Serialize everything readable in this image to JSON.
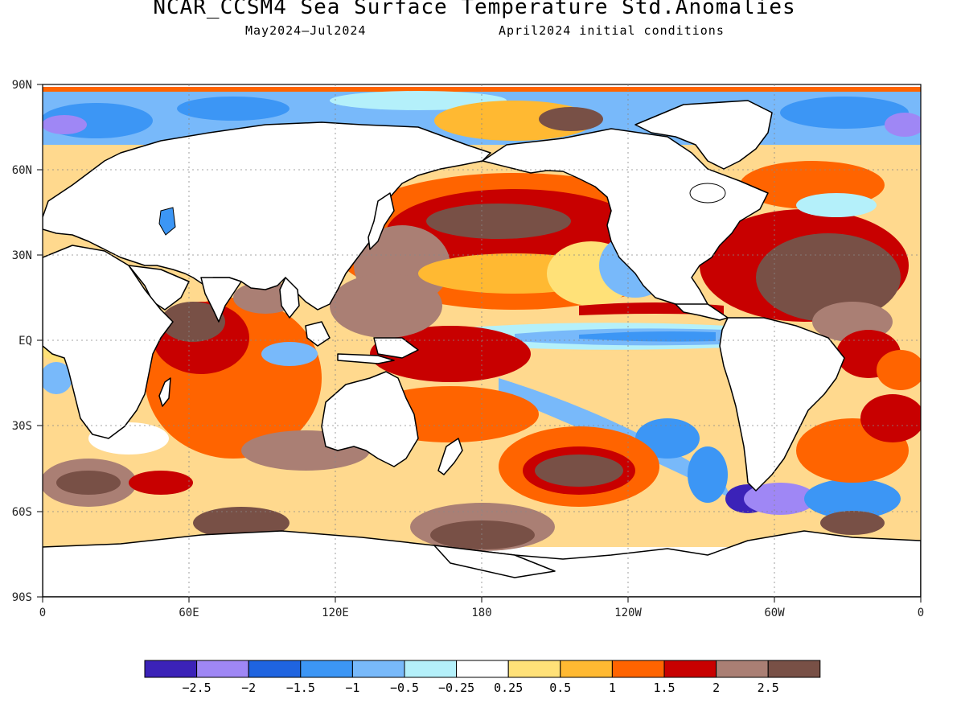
{
  "title": "NCAR_CCSM4 Sea Surface Temperature Std.Anomalies",
  "subtitle_left": "May2024–Jul2024",
  "subtitle_right": "April2024 initial conditions",
  "lat_labels": [
    "90N",
    "60N",
    "30N",
    "EQ",
    "30S",
    "60S",
    "90S"
  ],
  "lon_labels": [
    "0",
    "60E",
    "120E",
    "180",
    "120W",
    "60W",
    "0"
  ],
  "colorbar": {
    "colors": [
      "#3b22b8",
      "#9f87f5",
      "#1f64e0",
      "#3c96f5",
      "#78b9fa",
      "#b4f0fa",
      "#ffffff",
      "#ffe178",
      "#ffb932",
      "#ff6400",
      "#c80000",
      "#aa7f74",
      "#785046"
    ],
    "labels": [
      "−2.5",
      "−2",
      "−1.5",
      "−1",
      "−0.5",
      "−0.25",
      "0.25",
      "0.5",
      "1",
      "1.5",
      "2",
      "2.5"
    ]
  }
}
